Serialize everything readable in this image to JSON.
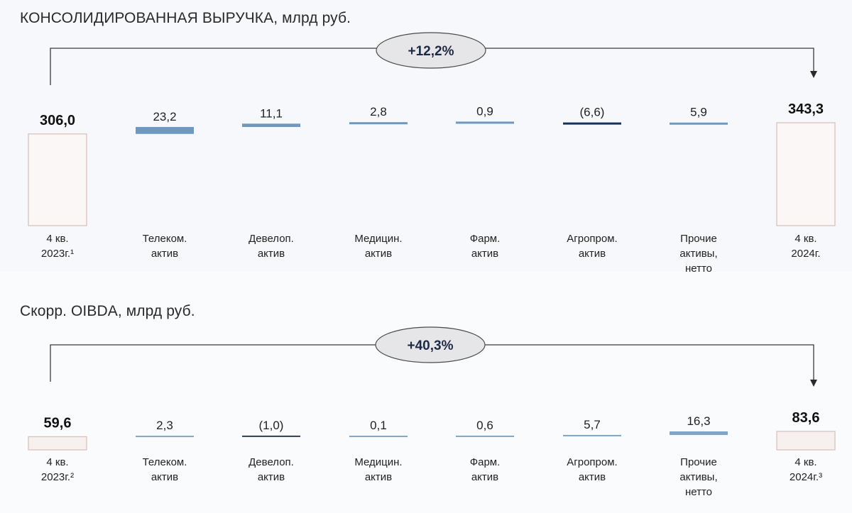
{
  "chart_data": [
    {
      "type": "bar",
      "subtype": "waterfall",
      "title": "КОНСОЛИДИРОВАННАЯ ВЫРУЧКА, млрд руб.",
      "change_label": "+12,2%",
      "categories": [
        [
          "4 кв.",
          "2023г.¹"
        ],
        [
          "Телеком.",
          "актив"
        ],
        [
          "Девелоп.",
          "актив"
        ],
        [
          "Медицин.",
          "актив"
        ],
        [
          "Фарм.",
          "актив"
        ],
        [
          "Агропром.",
          "актив"
        ],
        [
          "Прочие",
          "активы,",
          "нетто"
        ],
        [
          "4 кв.",
          "2024г."
        ]
      ],
      "values": [
        306.0,
        23.2,
        11.1,
        2.8,
        0.9,
        -6.6,
        5.9,
        343.3
      ],
      "value_labels": [
        "306,0",
        "23,2",
        "11,1",
        "2,8",
        "0,9",
        "(6,6)",
        "5,9",
        "343,3"
      ],
      "kinds": [
        "total",
        "delta",
        "delta",
        "delta",
        "delta",
        "delta",
        "delta",
        "total"
      ],
      "colors": {
        "total_fill": "#faf7f6",
        "total_border": "#d9c2bc",
        "positive": "#6e98bf",
        "negative": "#17305a"
      }
    },
    {
      "type": "bar",
      "subtype": "waterfall",
      "title": "Скорр. OIBDA, млрд руб.",
      "change_label": "+40,3%",
      "categories": [
        [
          "4 кв.",
          "2023г.²"
        ],
        [
          "Телеком.",
          "актив"
        ],
        [
          "Девелоп.",
          "актив"
        ],
        [
          "Медицин.",
          "актив"
        ],
        [
          "Фарм.",
          "актив"
        ],
        [
          "Агропром.",
          "актив"
        ],
        [
          "Прочие",
          "активы,",
          "нетто"
        ],
        [
          "4 кв.",
          "2024г.³"
        ]
      ],
      "values": [
        59.6,
        2.3,
        -1.0,
        0.1,
        0.6,
        5.7,
        16.3,
        83.6
      ],
      "value_labels": [
        "59,6",
        "2,3",
        "(1,0)",
        "0,1",
        "0,6",
        "5,7",
        "16,3",
        "83,6"
      ],
      "kinds": [
        "total",
        "delta",
        "delta",
        "delta",
        "delta",
        "delta",
        "delta",
        "total"
      ],
      "colors": {
        "total_fill": "#f6f1ef",
        "total_border": "#d9c2bc",
        "positive": "#7fa6c9",
        "negative": "#2f3f55"
      }
    }
  ]
}
